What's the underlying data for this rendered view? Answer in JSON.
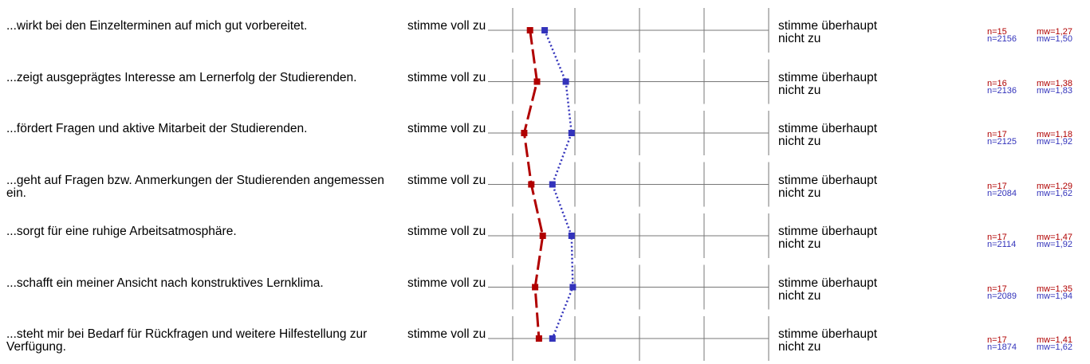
{
  "chart_data": {
    "type": "line",
    "scale": {
      "min": 1,
      "max": 5,
      "left_label": "stimme voll zu",
      "right_label": "stimme überhaupt nicht zu"
    },
    "orientation": "horizontal-profile",
    "series": [
      {
        "key": "course",
        "color": "#b00000",
        "style": "dashed",
        "values": [
          1.27,
          1.38,
          1.18,
          1.29,
          1.47,
          1.35,
          1.41
        ]
      },
      {
        "key": "reference",
        "color": "#3333bb",
        "style": "dotted",
        "values": [
          1.5,
          1.83,
          1.92,
          1.62,
          1.92,
          1.94,
          1.62
        ]
      }
    ],
    "items": [
      {
        "question": "...wirkt bei den Einzelterminen auf mich gut vorbereitet.",
        "n_course": "n=15",
        "mw_course": "mw=1,27",
        "n_ref": "n=2156",
        "mw_ref": "mw=1,50"
      },
      {
        "question": "...zeigt ausgeprägtes Interesse am Lernerfolg der Studierenden.",
        "n_course": "n=16",
        "mw_course": "mw=1,38",
        "n_ref": "n=2136",
        "mw_ref": "mw=1,83"
      },
      {
        "question": "...fördert Fragen und aktive Mitarbeit der Studierenden.",
        "n_course": "n=17",
        "mw_course": "mw=1,18",
        "n_ref": "n=2125",
        "mw_ref": "mw=1,92"
      },
      {
        "question": "...geht auf Fragen bzw. Anmerkungen der Studierenden angemessen ein.",
        "n_course": "n=17",
        "mw_course": "mw=1,29",
        "n_ref": "n=2084",
        "mw_ref": "mw=1,62"
      },
      {
        "question": "...sorgt für eine ruhige Arbeitsatmosphäre.",
        "n_course": "n=17",
        "mw_course": "mw=1,47",
        "n_ref": "n=2114",
        "mw_ref": "mw=1,92"
      },
      {
        "question": "...schafft ein meiner Ansicht nach konstruktives Lernklima.",
        "n_course": "n=17",
        "mw_course": "mw=1,35",
        "n_ref": "n=2089",
        "mw_ref": "mw=1,94"
      },
      {
        "question": "...steht mir bei Bedarf für Rückfragen und weitere Hilfestellung zur Verfügung.",
        "n_course": "n=17",
        "mw_course": "mw=1,41",
        "n_ref": "n=1874",
        "mw_ref": "mw=1,62"
      }
    ]
  }
}
